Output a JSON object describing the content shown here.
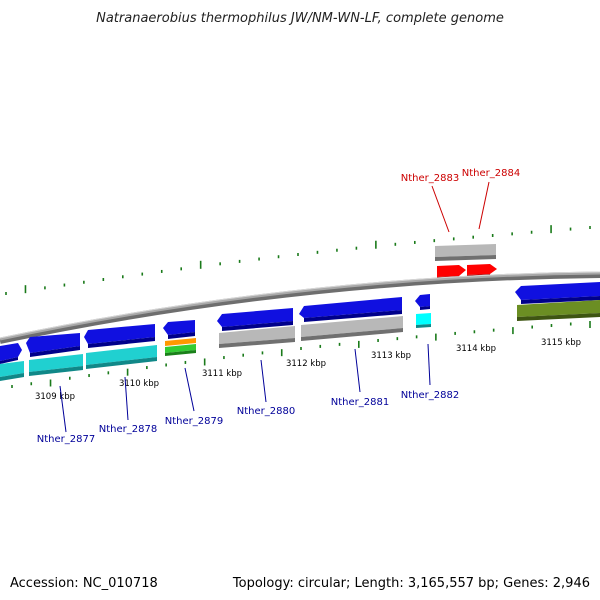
{
  "title": "Natranaerobius thermophilus JW/NM-WN-LF, complete genome",
  "footer": {
    "accession": "Accession: NC_010718",
    "summary": "Topology: circular; Length: 3,165,557 bp; Genes: 2,946"
  },
  "colors": {
    "backbone": "#8a8a8a",
    "backbone_light": "#c8c8c8",
    "tick": "#1a7a1a",
    "cds": "#1010e0",
    "cds_dark": "#00008a",
    "gene": "#b8b8b8",
    "gene_dark": "#707070",
    "cyan": "#20d0d0",
    "cyan_dark": "#108888",
    "red": "#ff0000",
    "red_dark": "#a00000",
    "orange": "#ff9900",
    "green": "#33cc33",
    "olive": "#6b8e23",
    "label_blue": "#000099",
    "label_red": "#cc0000"
  },
  "ticks": [
    "3109 kbp",
    "3110 kbp",
    "3111 kbp",
    "3112 kbp",
    "3113 kbp",
    "3114 kbp",
    "3115 kbp"
  ],
  "gene_labels": [
    {
      "name": "Nther_2877",
      "color": "blue"
    },
    {
      "name": "Nther_2878",
      "color": "blue"
    },
    {
      "name": "Nther_2879",
      "color": "blue"
    },
    {
      "name": "Nther_2880",
      "color": "blue"
    },
    {
      "name": "Nther_2881",
      "color": "blue"
    },
    {
      "name": "Nther_2882",
      "color": "blue"
    },
    {
      "name": "Nther_2883",
      "color": "red"
    },
    {
      "name": "Nther_2884",
      "color": "red"
    }
  ]
}
